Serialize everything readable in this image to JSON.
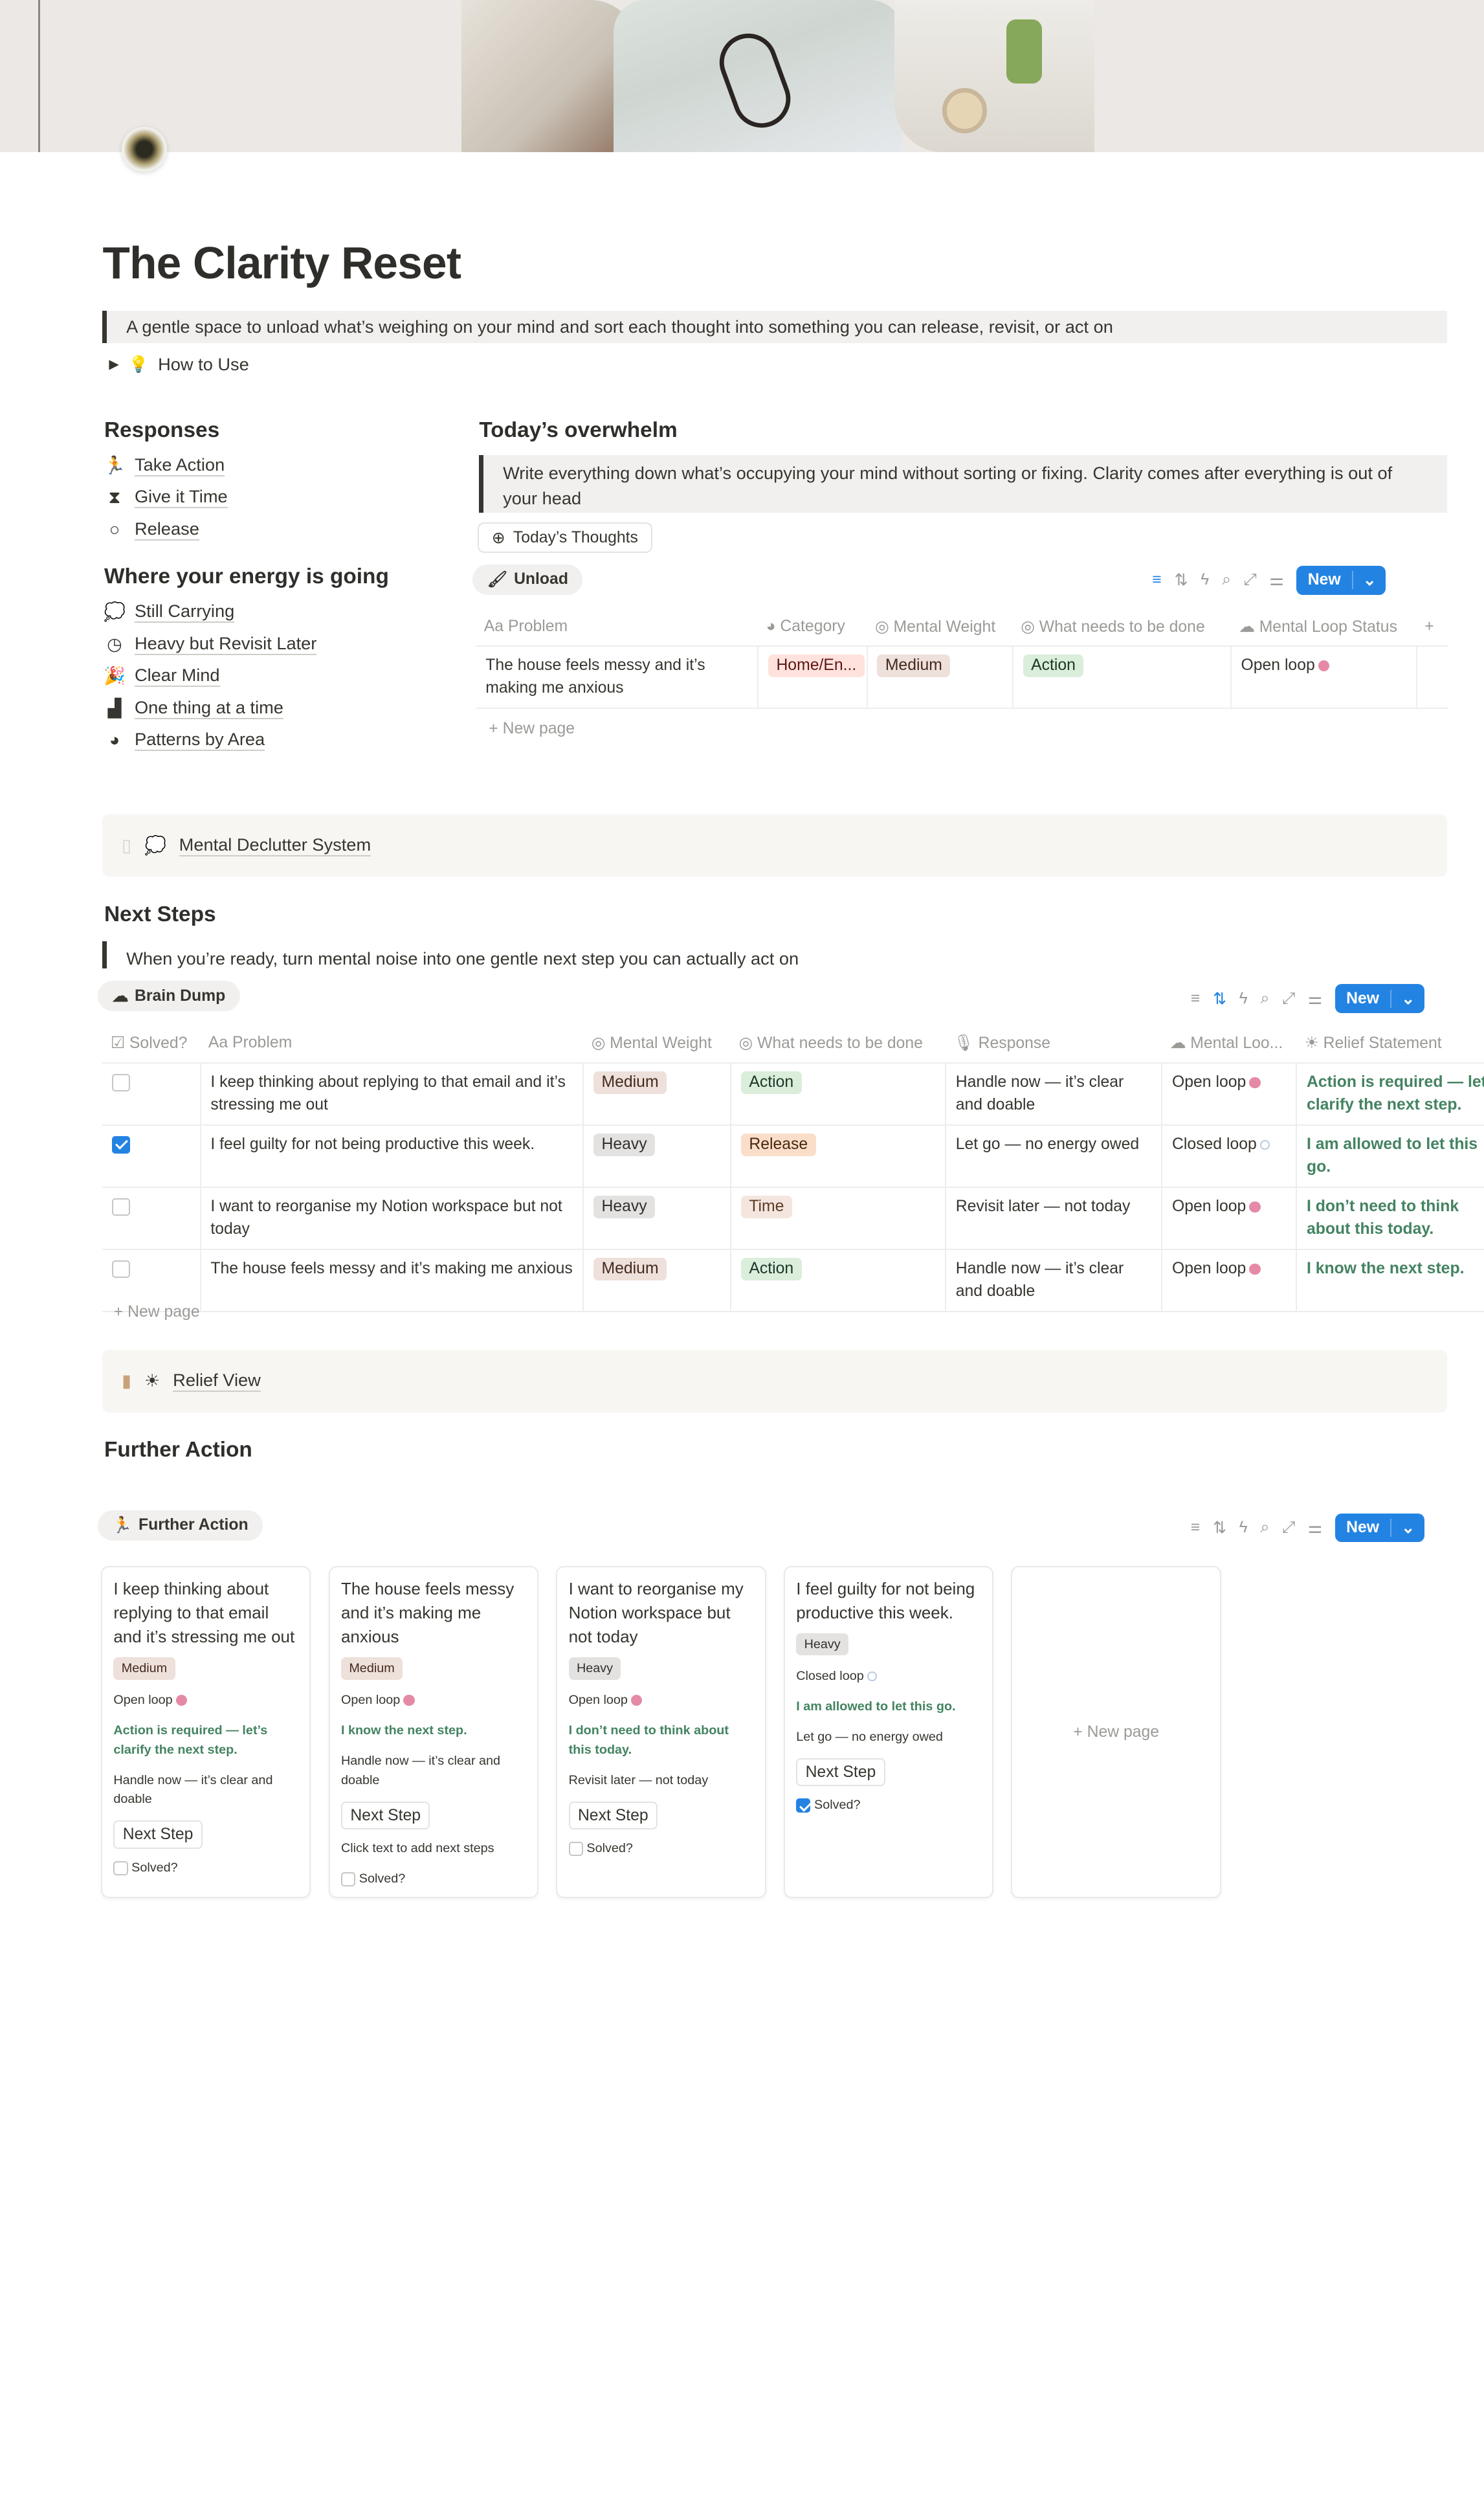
{
  "page": {
    "title": "The Clarity Reset",
    "intro_quote": "A gentle space to unload what’s weighing on your mind and sort each thought into something you can release, revisit, or act on",
    "toggle": {
      "icon": "lightbulb-icon",
      "label": "How to Use"
    }
  },
  "sidebar": {
    "responses_heading": "Responses",
    "responses": [
      {
        "icon": "running-person-icon",
        "label": "Take Action"
      },
      {
        "icon": "hourglass-icon",
        "label": "Give it Time"
      },
      {
        "icon": "circle-icon",
        "label": "Release"
      }
    ],
    "energy_heading": "Where your energy is going",
    "energy": [
      {
        "icon": "thought-bubble-icon",
        "label": "Still Carrying"
      },
      {
        "icon": "clock-icon",
        "label": "Heavy but Revisit Later"
      },
      {
        "icon": "party-popper-icon",
        "label": "Clear Mind"
      },
      {
        "icon": "stairs-icon",
        "label": "One thing at a time"
      },
      {
        "icon": "pie-chart-icon",
        "label": "Patterns by Area"
      }
    ]
  },
  "overwhelm": {
    "heading": "Today’s overwhelm",
    "quote": "Write everything down what’s occupying your mind without sorting or fixing. Clarity comes after everything is out of your head",
    "add_button": "Today’s Thoughts",
    "view_tab": "Unload",
    "new_label": "New",
    "columns": [
      "Problem",
      "Category",
      "Mental Weight",
      "What needs to be done",
      "Mental Loop Status"
    ],
    "rows": [
      {
        "problem": "The house feels messy and it’s making me anxious",
        "category": "Home/En...",
        "weight": "Medium",
        "todo": "Action",
        "loop": "Open loop"
      }
    ],
    "new_page": "New page"
  },
  "callout1": {
    "label": "Mental Declutter System"
  },
  "next_steps": {
    "heading": "Next Steps",
    "quote": "When you’re ready, turn mental noise into one gentle next step you can actually act on",
    "view_tab": "Brain Dump",
    "new_label": "New",
    "columns": [
      "Solved?",
      "Problem",
      "Mental Weight",
      "What needs to be done",
      "Response",
      "Mental Loo...",
      "Relief Statement"
    ],
    "rows": [
      {
        "solved": false,
        "problem": "I keep thinking about replying to that email and it’s stressing me out",
        "weight": "Medium",
        "todo": "Action",
        "response": "Handle now — it’s clear and doable",
        "loop": "Open loop",
        "relief": "Action is required — let’s clarify the next step."
      },
      {
        "solved": true,
        "problem": "I feel guilty for not being productive this week.",
        "weight": "Heavy",
        "todo": "Release",
        "response": "Let go — no energy owed",
        "loop": "Closed loop",
        "relief": "I am allowed to let this go."
      },
      {
        "solved": false,
        "problem": "I want to reorganise my Notion workspace but not today",
        "weight": "Heavy",
        "todo": "Time",
        "response": "Revisit later — not today",
        "loop": "Open loop",
        "relief": "I don’t need to think about this today."
      },
      {
        "solved": false,
        "problem": "The house feels messy and it’s making me anxious",
        "weight": "Medium",
        "todo": "Action",
        "response": "Handle now — it’s clear and doable",
        "loop": "Open loop",
        "relief": "I know the next step."
      }
    ],
    "new_page": "New page"
  },
  "callout2": {
    "label": "Relief View"
  },
  "further": {
    "heading": "Further Action",
    "view_tab": "Further Action",
    "new_label": "New",
    "cards": [
      {
        "title": "I keep thinking about replying to that email and it’s stressing me out",
        "weight": "Medium",
        "loop": "Open loop",
        "relief": "Action is required — let’s clarify the next step.",
        "response": "Handle now — it’s clear and doable",
        "next_step": "Next Step",
        "note": "",
        "solved_label": "Solved?",
        "solved": false
      },
      {
        "title": "The house feels messy and it’s making me anxious",
        "weight": "Medium",
        "loop": "Open loop",
        "relief": "I know the next step.",
        "response": "Handle now — it’s clear and doable",
        "next_step": "Next Step",
        "note": "Click text to add next steps",
        "solved_label": "Solved?",
        "solved": false
      },
      {
        "title": "I want to reorganise my Notion workspace but not today",
        "weight": "Heavy",
        "loop": "Open loop",
        "relief": "I don’t need to think about this today.",
        "response": "Revisit later — not today",
        "next_step": "Next Step",
        "note": "",
        "solved_label": "Solved?",
        "solved": false
      },
      {
        "title": "I feel guilty for not being productive this week.",
        "weight": "Heavy",
        "loop": "Closed loop",
        "relief": "I am allowed to let this go.",
        "response": "Let go — no energy owed",
        "next_step": "Next Step",
        "note": "",
        "solved_label": "Solved?",
        "solved": true
      }
    ],
    "new_page": "New page"
  },
  "colors": {
    "accent": "#2383e2",
    "tag_medium": "#eee0da",
    "tag_heavy": "#e3e2e0",
    "tag_action": "#dbeddb",
    "tag_release": "#fadec9",
    "tag_time": "#f4e6df",
    "tag_category": "#ffe2dd",
    "relief_green": "#448361"
  }
}
